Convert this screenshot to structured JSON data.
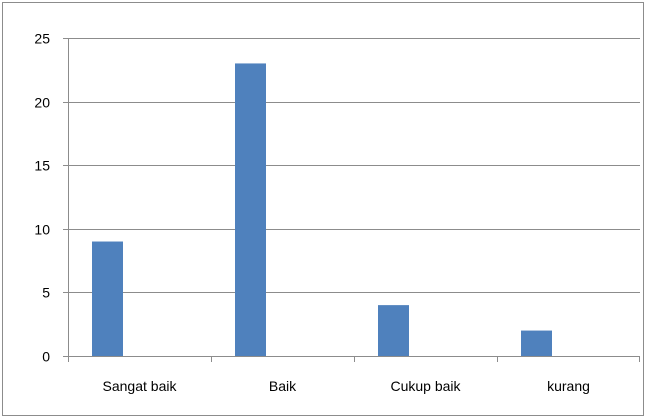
{
  "chart_data": {
    "type": "bar",
    "categories": [
      "Sangat baik",
      "Baik",
      "Cukup baik",
      "kurang"
    ],
    "series": [
      {
        "values": [
          9,
          23,
          4,
          2
        ]
      }
    ],
    "ylim": [
      0,
      25
    ],
    "yticks": [
      0,
      5,
      10,
      15,
      20,
      25
    ],
    "grid": true,
    "legend": "none",
    "colors": {
      "bar": "#4f81bd",
      "grid": "#8c8c8c",
      "axis": "#8c8c8c",
      "border": "#8c8c8c"
    }
  }
}
